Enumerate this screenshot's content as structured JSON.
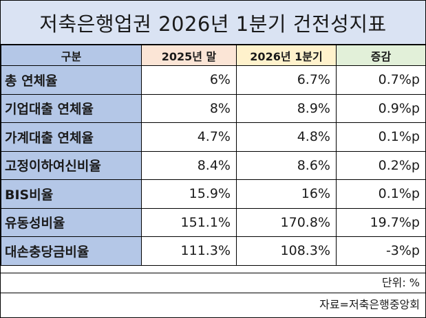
{
  "title": "저축은행업권 2026년 1분기 건전성지표",
  "header": {
    "col0": "구분",
    "col1": "2025년 말",
    "col2": "2026년 1분기",
    "col3": "증감"
  },
  "rows": [
    {
      "label": "총 연체율",
      "v2025": "6%",
      "v2026q1": "6.7%",
      "change": "0.7%p"
    },
    {
      "label": "기업대출 연체율",
      "v2025": "8%",
      "v2026q1": "8.9%",
      "change": "0.9%p"
    },
    {
      "label": "가계대출 연체율",
      "v2025": "4.7%",
      "v2026q1": "4.8%",
      "change": "0.1%p"
    },
    {
      "label": "고정이하여신비율",
      "v2025": "8.4%",
      "v2026q1": "8.6%",
      "change": "0.2%p"
    },
    {
      "label": "BIS비율",
      "v2025": "15.9%",
      "v2026q1": "16%",
      "change": "0.1%p"
    },
    {
      "label": "유동성비율",
      "v2025": "151.1%",
      "v2026q1": "170.8%",
      "change": "19.7%p"
    },
    {
      "label": "대손충당금비율",
      "v2025": "111.3%",
      "v2026q1": "108.3%",
      "change": "-3%p"
    }
  ],
  "unit_note": "단위: %",
  "source_note": "자료=저축은행중앙회",
  "colors": {
    "title_bg": "#dae3f3",
    "label_bg": "#b4c7e7",
    "col_2025_bg": "#fbe5d6",
    "col_2026_bg": "#fff2cc",
    "col_change_bg": "#e2f0d9"
  }
}
